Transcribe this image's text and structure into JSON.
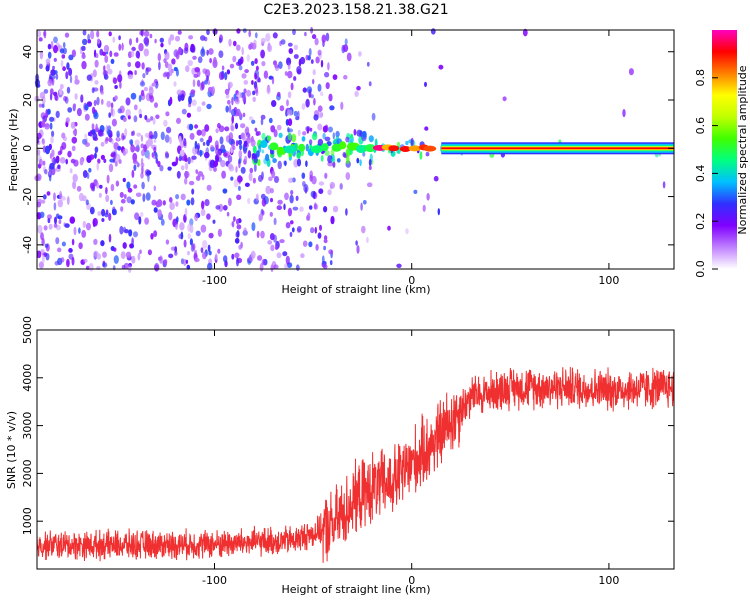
{
  "page_title": "C2E3.2023.158.21.38.G21",
  "colors": {
    "snr_line": "#f03030",
    "frame": "#000000",
    "carrier": "#e01010"
  },
  "chart_data": [
    {
      "type": "heatmap",
      "title": "C2E3.2023.158.21.38.G21",
      "xlabel": "Height of straight line (km)",
      "ylabel": "Frequency (Hz)",
      "xlim": [
        -190,
        133
      ],
      "ylim": [
        -50,
        49
      ],
      "xticks": [
        -100,
        0,
        100
      ],
      "yticks": [
        -40,
        -20,
        0,
        20,
        40
      ],
      "grid": false,
      "colorbar": {
        "label": "Normalized spectral amplitude",
        "range": [
          0,
          1
        ],
        "ticks": [
          "0.0",
          "0.2",
          "0.4",
          "0.6",
          "0.8"
        ],
        "tick_values": [
          0,
          0.2,
          0.4,
          0.6,
          0.8
        ],
        "colormap": [
          "#ffffff",
          "#c080ff",
          "#8000ff",
          "#3030ff",
          "#00c0ff",
          "#00ff80",
          "#40ff00",
          "#c0ff00",
          "#ffff00",
          "#ff8000",
          "#ff0000",
          "#ff00c0"
        ]
      },
      "carrier": {
        "frequency": 0,
        "x_start": 15,
        "x_end": 133,
        "amplitude": 0.95
      }
    },
    {
      "type": "line",
      "xlabel": "Height of straight line (km)",
      "ylabel": "SNR (10 * v/v)",
      "xlim": [
        -190,
        133
      ],
      "ylim": [
        0,
        5000
      ],
      "xticks": [
        -100,
        0,
        100
      ],
      "yticks": [
        1000,
        2000,
        3000,
        4000,
        5000
      ],
      "grid": false,
      "series": [
        {
          "x": [
            -190,
            -150,
            -100,
            -60,
            -40,
            -30,
            -20,
            -10,
            0,
            10,
            20,
            30,
            50,
            80,
            100,
            133
          ],
          "y": [
            500,
            500,
            520,
            600,
            900,
            1400,
            1700,
            1800,
            2200,
            2600,
            3100,
            3600,
            3800,
            3800,
            3750,
            3800
          ]
        }
      ]
    }
  ]
}
